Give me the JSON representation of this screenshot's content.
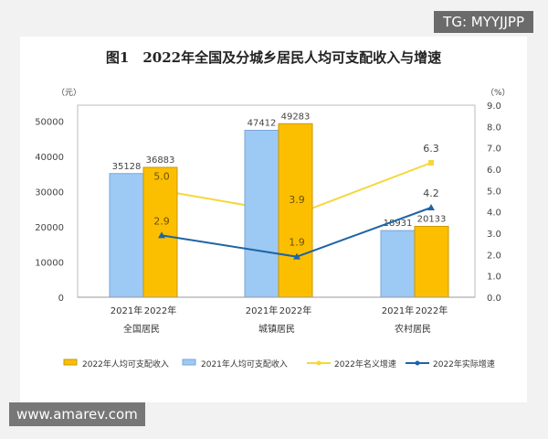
{
  "watermarks": {
    "top": "TG: MYYJJPP",
    "bottom": "www.amarev.com"
  },
  "chart_data": {
    "type": "bar",
    "title": "图1　2022年全国及分城乡居民人均可支配收入与增速",
    "ylabel_left": "（元）",
    "ylabel_right": "（%）",
    "ylim_left": [
      0,
      54545
    ],
    "yticks_left": [
      "0",
      "10000",
      "20000",
      "30000",
      "40000",
      "50000"
    ],
    "ylim_right": [
      0,
      9
    ],
    "yticks_right": [
      "0.0",
      "1.0",
      "2.0",
      "3.0",
      "4.0",
      "5.0",
      "6.0",
      "7.0",
      "8.0",
      "9.0"
    ],
    "categories": [
      "全国居民",
      "城镇居民",
      "农村居民"
    ],
    "sub_labels": [
      "2021年",
      "2022年"
    ],
    "grid": false,
    "legend_position": "bottom",
    "series": [
      {
        "name": "2021年人均可支配收入",
        "kind": "bar",
        "axis": "left",
        "color": "#9dc9f5",
        "values": [
          35128,
          47412,
          18931
        ]
      },
      {
        "name": "2022年人均可支配收入",
        "kind": "bar",
        "axis": "left",
        "color": "#fcbf00",
        "values": [
          36883,
          49283,
          20133
        ]
      },
      {
        "name": "2022年名义增速",
        "kind": "line",
        "axis": "right",
        "color": "#f5d73b",
        "values": [
          5.0,
          3.9,
          6.3
        ]
      },
      {
        "name": "2022年实际增速",
        "kind": "line",
        "axis": "right",
        "color": "#1f64a4",
        "values": [
          2.9,
          1.9,
          4.2
        ]
      }
    ],
    "legend_order": [
      1,
      0,
      2,
      3
    ]
  }
}
